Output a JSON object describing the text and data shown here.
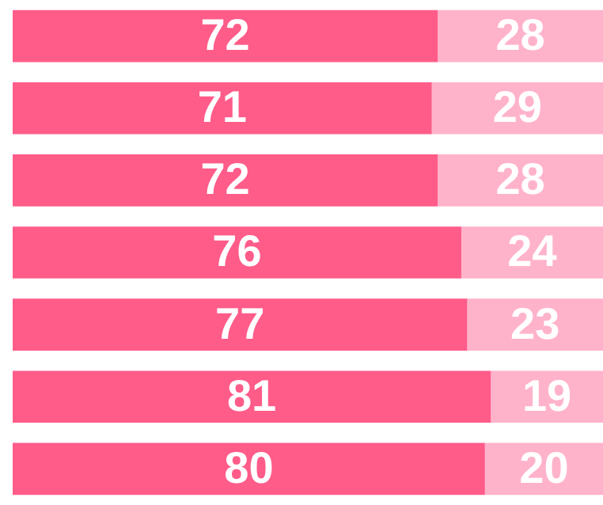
{
  "chart_data": {
    "type": "bar",
    "orientation": "horizontal",
    "stacked": true,
    "categories": [
      null,
      null,
      null,
      null,
      null,
      null,
      null
    ],
    "series": [
      {
        "color": "#ff5c8a",
        "values": [
          72,
          71,
          72,
          76,
          77,
          81,
          80
        ]
      },
      {
        "color": "#ffb3cb",
        "values": [
          28,
          29,
          28,
          24,
          23,
          19,
          20
        ]
      }
    ],
    "data_labels": true
  }
}
